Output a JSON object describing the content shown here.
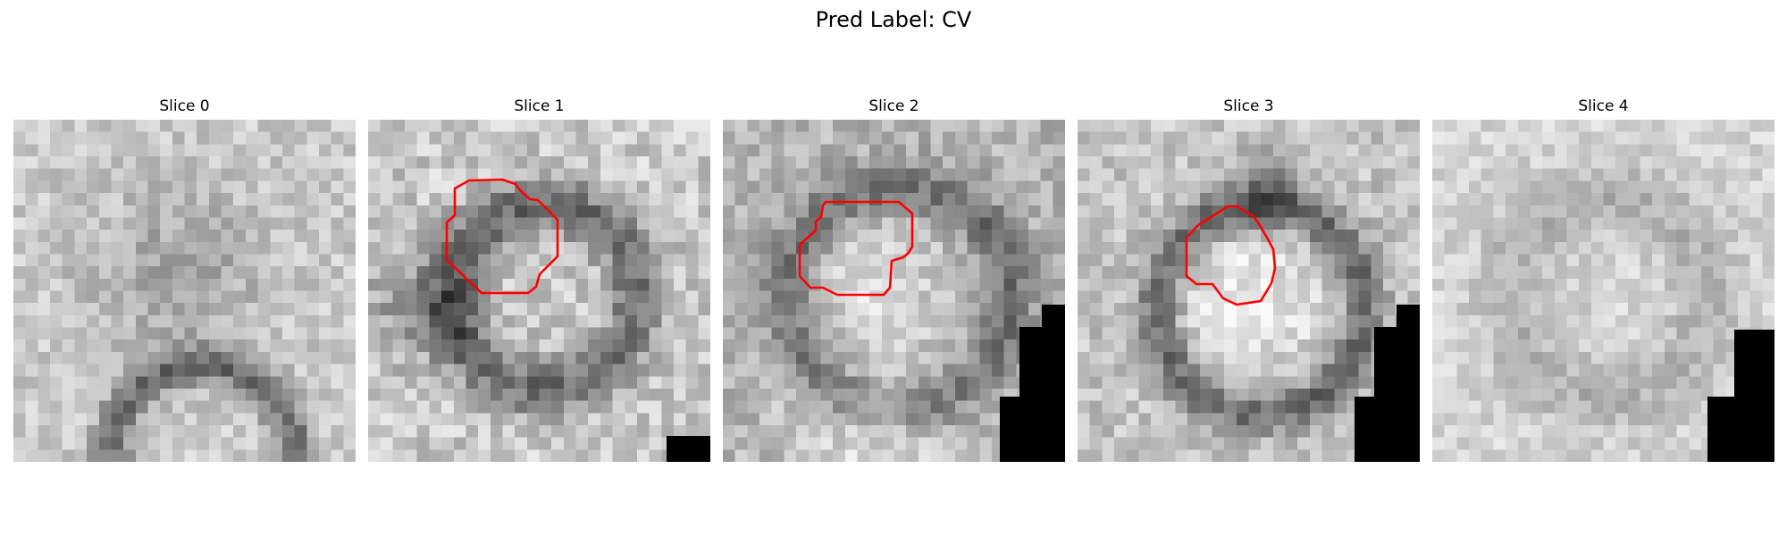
{
  "figure": {
    "title": "Pred Label: CV"
  },
  "panels": [
    {
      "title": "Slice 0",
      "has_contour": false,
      "contour_color": "#ff0000"
    },
    {
      "title": "Slice 1",
      "has_contour": true,
      "contour_color": "#ff0000"
    },
    {
      "title": "Slice 2",
      "has_contour": true,
      "contour_color": "#ff0000"
    },
    {
      "title": "Slice 3",
      "has_contour": true,
      "contour_color": "#ff0000"
    },
    {
      "title": "Slice 4",
      "has_contour": false,
      "contour_color": "#ff0000"
    }
  ]
}
